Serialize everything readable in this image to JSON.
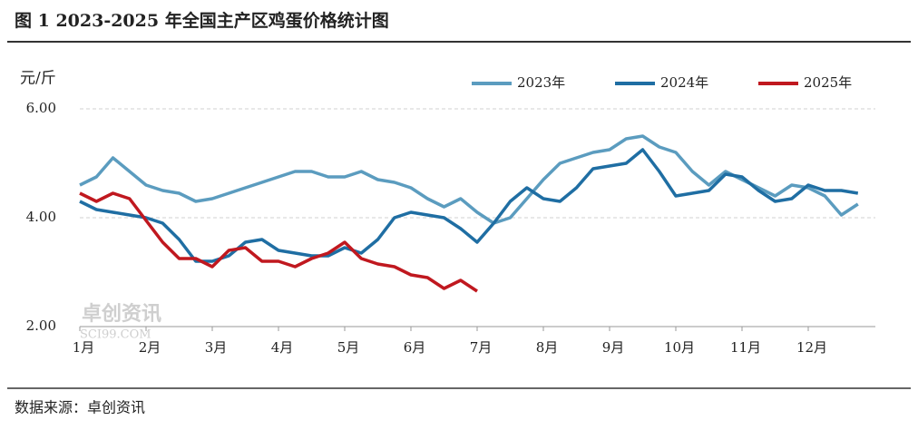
{
  "chart_data": {
    "type": "line",
    "title": "图 1 2023-2025 年全国主产区鸡蛋价格统计图",
    "y_label": "元/斤",
    "source": "数据来源：卓创资讯",
    "watermark": [
      "卓创资讯",
      "SCI99.COM"
    ],
    "categories": [
      "1月",
      null,
      null,
      null,
      "2月",
      null,
      null,
      null,
      "3月",
      null,
      null,
      null,
      "4月",
      null,
      null,
      null,
      "5月",
      null,
      null,
      null,
      "6月",
      null,
      null,
      null,
      "7月",
      null,
      null,
      null,
      "8月",
      null,
      null,
      null,
      "9月",
      null,
      null,
      null,
      "10月",
      null,
      null,
      null,
      "11月",
      null,
      null,
      null,
      "12月",
      null,
      null,
      null
    ],
    "series": [
      {
        "name": "2023年",
        "color": "#5b9cbf",
        "values": [
          4.6,
          4.75,
          5.1,
          4.85,
          4.6,
          4.5,
          4.45,
          4.3,
          4.35,
          4.45,
          4.55,
          4.65,
          4.75,
          4.85,
          4.85,
          4.75,
          4.75,
          4.85,
          4.7,
          4.65,
          4.55,
          4.35,
          4.2,
          4.35,
          4.1,
          3.9,
          4.0,
          4.35,
          4.7,
          5.0,
          5.1,
          5.2,
          5.25,
          5.45,
          5.5,
          5.3,
          5.2,
          4.85,
          4.6,
          4.85,
          4.7,
          4.55,
          4.4,
          4.6,
          4.55,
          4.4,
          4.05,
          4.25
        ]
      },
      {
        "name": "2024年",
        "color": "#1f6ea3",
        "values": [
          4.3,
          4.15,
          4.1,
          4.05,
          4.0,
          3.9,
          3.6,
          3.2,
          3.2,
          3.3,
          3.55,
          3.6,
          3.4,
          3.35,
          3.3,
          3.3,
          3.45,
          3.35,
          3.6,
          4.0,
          4.1,
          4.05,
          4.0,
          3.8,
          3.55,
          3.9,
          4.3,
          4.55,
          4.35,
          4.3,
          4.55,
          4.9,
          4.95,
          5.0,
          5.25,
          4.85,
          4.4,
          4.45,
          4.5,
          4.8,
          4.75,
          4.5,
          4.3,
          4.35,
          4.6,
          4.5,
          4.5,
          4.45
        ]
      },
      {
        "name": "2025年",
        "color": "#c0181f",
        "values": [
          4.45,
          4.3,
          4.45,
          4.35,
          3.95,
          3.55,
          3.25,
          3.25,
          3.1,
          3.4,
          3.45,
          3.2,
          3.2,
          3.1,
          3.25,
          3.35,
          3.55,
          3.25,
          3.15,
          3.1,
          2.95,
          2.9,
          2.7,
          2.85,
          2.65,
          null,
          null,
          null,
          null,
          null,
          null,
          null,
          null,
          null,
          null,
          null,
          null,
          null,
          null,
          null,
          null,
          null,
          null,
          null,
          null,
          null,
          null,
          null
        ]
      }
    ],
    "ylim": [
      2,
      6
    ],
    "yticks": [
      {
        "value": 2,
        "label": "2.00"
      },
      {
        "value": 4,
        "label": "4.00"
      },
      {
        "value": 6,
        "label": "6.00"
      }
    ],
    "grid": true,
    "legend": "top"
  }
}
